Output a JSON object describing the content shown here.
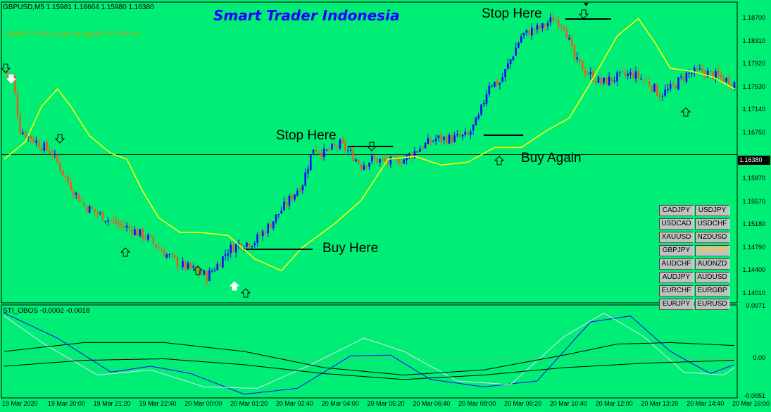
{
  "header": {
    "symbol": "GBPUSD,M5  1.15981 1.16664 1.15980 1.16380",
    "brand": "Smart Trader Indonesia",
    "copyright": "©2018 FX Tech Group Ltd. Agimat FX 2018 Pro"
  },
  "annotations": {
    "stop1": "Stop Here",
    "stop2": "Stop Here",
    "buy1": "Buy Here",
    "buy2": "Buy Again"
  },
  "current_price": "1.16380",
  "pairs": [
    "CADJPY",
    "USDJPY",
    "USDCAD",
    "USDCHF",
    "XAUUSD",
    "NZDUSD",
    "GBPJPY",
    "GBPUSD",
    "AUDCHF",
    "AUDNZD",
    "AUDJPY",
    "AUDUSD",
    "EURCHF",
    "EURGBP",
    "EURJPY",
    "EURUSD"
  ],
  "active_pair": "GBPUSD",
  "colors": {
    "background": "#00ee76",
    "bull": "#1a00ff",
    "bear": "#e06020",
    "ma": "#ffff00",
    "osc_blue": "#1a00ff",
    "osc_white": "#e0e0ff"
  },
  "chart_data": [
    {
      "type": "candlestick",
      "title": "GBPUSD,M5",
      "price_axis": [
        "1.18700",
        "1.18310",
        "1.17920",
        "1.17530",
        "1.17140",
        "1.16750",
        "1.16380",
        "1.15970",
        "1.15570",
        "1.15180",
        "1.14790",
        "1.14400",
        "1.14010"
      ],
      "time_axis": [
        "19 Mar 2020",
        "19 Mar 20:00",
        "19 Mar 21:20",
        "19 Mar 22:40",
        "20 Mar 00:00",
        "20 Mar 01:20",
        "20 Mar 02:40",
        "20 Mar 04:00",
        "20 Mar 05:20",
        "20 Mar 06:40",
        "20 Mar 08:00",
        "20 Mar 09:20",
        "20 Mar 10:40",
        "20 Mar 12:00",
        "20 Mar 13:20",
        "20 Mar 14:40",
        "20 Mar 16:00"
      ],
      "ylim": [
        1.1385,
        1.1898
      ],
      "close_path": [
        [
          0,
          1.178
        ],
        [
          3,
          1.177
        ],
        [
          6,
          1.168
        ],
        [
          12,
          1.166
        ],
        [
          18,
          1.164
        ],
        [
          24,
          1.159
        ],
        [
          30,
          1.155
        ],
        [
          36,
          1.1535
        ],
        [
          42,
          1.152
        ],
        [
          48,
          1.151
        ],
        [
          54,
          1.1495
        ],
        [
          60,
          1.147
        ],
        [
          66,
          1.145
        ],
        [
          72,
          1.144
        ],
        [
          76,
          1.143
        ],
        [
          80,
          1.145
        ],
        [
          84,
          1.1475
        ],
        [
          88,
          1.1485
        ],
        [
          94,
          1.149
        ],
        [
          100,
          1.152
        ],
        [
          106,
          1.1555
        ],
        [
          112,
          1.159
        ],
        [
          116,
          1.165
        ],
        [
          120,
          1.164
        ],
        [
          126,
          1.1655
        ],
        [
          130,
          1.164
        ],
        [
          134,
          1.162
        ],
        [
          138,
          1.163
        ],
        [
          144,
          1.1625
        ],
        [
          150,
          1.163
        ],
        [
          156,
          1.165
        ],
        [
          162,
          1.1665
        ],
        [
          168,
          1.1665
        ],
        [
          174,
          1.167
        ],
        [
          178,
          1.17
        ],
        [
          182,
          1.176
        ],
        [
          186,
          1.176
        ],
        [
          190,
          1.18
        ],
        [
          194,
          1.184
        ],
        [
          198,
          1.185
        ],
        [
          202,
          1.1855
        ],
        [
          206,
          1.187
        ],
        [
          210,
          1.186
        ],
        [
          214,
          1.18
        ],
        [
          218,
          1.178
        ],
        [
          224,
          1.176
        ],
        [
          230,
          1.177
        ],
        [
          236,
          1.1775
        ],
        [
          242,
          1.176
        ],
        [
          246,
          1.174
        ],
        [
          250,
          1.175
        ],
        [
          256,
          1.1775
        ],
        [
          262,
          1.178
        ],
        [
          268,
          1.177
        ],
        [
          274,
          1.176
        ]
      ],
      "ma_path": [
        [
          0,
          1.163
        ],
        [
          8,
          1.166
        ],
        [
          14,
          1.172
        ],
        [
          20,
          1.175
        ],
        [
          25,
          1.172
        ],
        [
          32,
          1.167
        ],
        [
          40,
          1.164
        ],
        [
          46,
          1.163
        ],
        [
          52,
          1.1575
        ],
        [
          58,
          1.153
        ],
        [
          66,
          1.1505
        ],
        [
          74,
          1.1505
        ],
        [
          84,
          1.15
        ],
        [
          94,
          1.146
        ],
        [
          104,
          1.144
        ],
        [
          112,
          1.148
        ],
        [
          124,
          1.152
        ],
        [
          134,
          1.156
        ],
        [
          144,
          1.163
        ],
        [
          154,
          1.1635
        ],
        [
          164,
          1.162
        ],
        [
          174,
          1.1625
        ],
        [
          184,
          1.165
        ],
        [
          194,
          1.165
        ],
        [
          204,
          1.168
        ],
        [
          212,
          1.17
        ],
        [
          220,
          1.176
        ],
        [
          230,
          1.184
        ],
        [
          238,
          1.187
        ],
        [
          244,
          1.183
        ],
        [
          250,
          1.1785
        ],
        [
          258,
          1.178
        ],
        [
          266,
          1.177
        ],
        [
          274,
          1.175
        ]
      ],
      "series": [
        {
          "name": "GBPUSD",
          "style": "candles"
        },
        {
          "name": "MA",
          "style": "line",
          "color": "#ffff00"
        }
      ]
    },
    {
      "type": "line",
      "title": "STI_OBOS -0.0002 -0.0018",
      "ylim": [
        -0.0053,
        0.0073
      ],
      "y_ticks": [
        "0.0071",
        "0.00",
        "-0.0051"
      ],
      "series": [
        {
          "name": "blue",
          "values": [
            [
              0,
              0.0062
            ],
            [
              20,
              0.0028
            ],
            [
              40,
              -0.0018
            ],
            [
              55,
              -0.001
            ],
            [
              70,
              -0.002
            ],
            [
              90,
              -0.0048
            ],
            [
              110,
              -0.004
            ],
            [
              130,
              0.0004
            ],
            [
              145,
              0.0005
            ],
            [
              160,
              -0.0028
            ],
            [
              180,
              -0.0038
            ],
            [
              200,
              -0.003
            ],
            [
              220,
              0.005
            ],
            [
              235,
              0.0058
            ],
            [
              250,
              0.001
            ],
            [
              265,
              -0.002
            ],
            [
              274,
              -0.0008
            ]
          ]
        },
        {
          "name": "white",
          "values": [
            [
              0,
              0.0058
            ],
            [
              15,
              0.002
            ],
            [
              35,
              -0.0022
            ],
            [
              55,
              -0.0015
            ],
            [
              75,
              -0.0038
            ],
            [
              95,
              -0.004
            ],
            [
              115,
              -0.0008
            ],
            [
              135,
              0.0028
            ],
            [
              150,
              0.001
            ],
            [
              170,
              -0.003
            ],
            [
              190,
              -0.0035
            ],
            [
              210,
              0.003
            ],
            [
              225,
              0.0062
            ],
            [
              240,
              0.003
            ],
            [
              255,
              -0.0018
            ],
            [
              270,
              -0.0022
            ],
            [
              274,
              -0.0012
            ]
          ]
        },
        {
          "name": "black1",
          "values": [
            [
              0,
              0.001
            ],
            [
              30,
              0.0022
            ],
            [
              60,
              0.0022
            ],
            [
              90,
              0.001
            ],
            [
              120,
              -0.0012
            ],
            [
              150,
              -0.0022
            ],
            [
              180,
              -0.0015
            ],
            [
              210,
              0.0005
            ],
            [
              230,
              0.002
            ],
            [
              250,
              0.0022
            ],
            [
              274,
              0.0018
            ]
          ]
        },
        {
          "name": "black2",
          "values": [
            [
              0,
              -0.001
            ],
            [
              30,
              -0.0002
            ],
            [
              60,
              0.0
            ],
            [
              90,
              -0.0008
            ],
            [
              120,
              -0.002
            ],
            [
              150,
              -0.0028
            ],
            [
              180,
              -0.0022
            ],
            [
              210,
              -0.0012
            ],
            [
              240,
              -0.0006
            ],
            [
              274,
              -0.0002
            ]
          ]
        }
      ]
    }
  ]
}
